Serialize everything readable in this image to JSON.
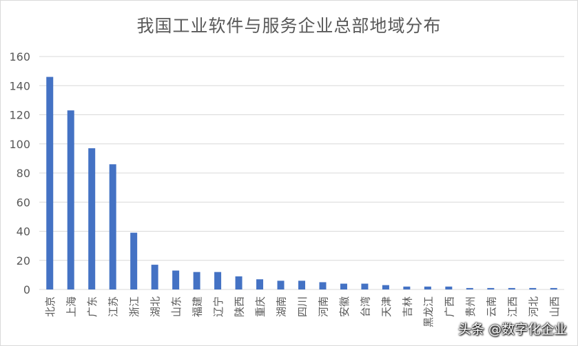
{
  "chart_data": {
    "type": "bar",
    "title": "我国工业软件与服务企业总部地域分布",
    "categories": [
      "北京",
      "上海",
      "广东",
      "江苏",
      "浙江",
      "湖北",
      "山东",
      "福建",
      "辽宁",
      "陕西",
      "重庆",
      "湖南",
      "四川",
      "河南",
      "安徽",
      "台湾",
      "天津",
      "吉林",
      "黑龙江",
      "广西",
      "贵州",
      "云南",
      "江西",
      "河北",
      "山西"
    ],
    "values": [
      146,
      123,
      97,
      86,
      39,
      17,
      13,
      12,
      12,
      9,
      7,
      6,
      6,
      5,
      4,
      4,
      3,
      2,
      2,
      2,
      1,
      1,
      1,
      1,
      1
    ],
    "ylim": [
      0,
      160
    ],
    "yticks": [
      0,
      20,
      40,
      60,
      80,
      100,
      120,
      140,
      160
    ],
    "grid": true,
    "bar_color": "#4472c4",
    "grid_color": "#d9d9d9",
    "text_color": "#595959"
  },
  "watermark": "头条 @数字化企业"
}
